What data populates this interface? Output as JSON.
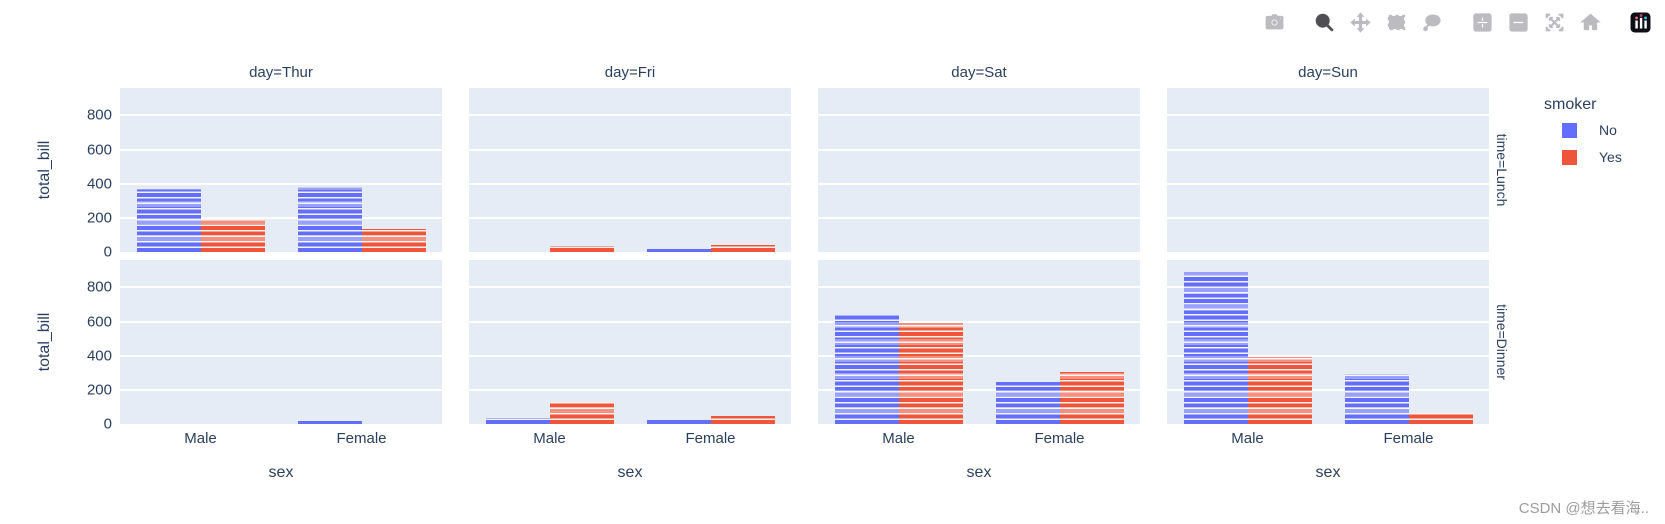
{
  "modebar": {
    "icons": [
      "camera",
      "zoom",
      "pan",
      "box-select",
      "lasso-select",
      "zoom-in",
      "zoom-out",
      "autoscale",
      "reset-axes-home",
      "plotly-logo"
    ],
    "active_icon": "zoom",
    "logo_colors": {
      "bg": "#0d0f14",
      "bars": "#ffffff",
      "dot_left": "#ea5f94",
      "dot_mid": "#c13b5c",
      "dot_right": "#2bc7e0"
    }
  },
  "legend": {
    "title": "smoker",
    "items": [
      {
        "label": "No",
        "color": "#636EFA"
      },
      {
        "label": "Yes",
        "color": "#EF553B"
      }
    ]
  },
  "watermark": "CSDN @想去看海..",
  "chart_data": {
    "type": "bar",
    "barmode": "group",
    "note": "stacked individual records per bar (plotly express tips dataset, faceted)",
    "title": "",
    "xlabel": "sex",
    "ylabel": "total_bill",
    "facet_col_field": "day",
    "facet_row_field": "time",
    "col_titles": [
      "day=Thur",
      "day=Fri",
      "day=Sat",
      "day=Sun"
    ],
    "row_titles": [
      "time=Lunch",
      "time=Dinner"
    ],
    "rows": [
      "Lunch",
      "Dinner"
    ],
    "cols": [
      "Thur",
      "Fri",
      "Sat",
      "Sun"
    ],
    "categories": [
      "Male",
      "Female"
    ],
    "series": [
      {
        "name": "No",
        "color": "#636EFA"
      },
      {
        "name": "Yes",
        "color": "#EF553B"
      }
    ],
    "yticks": [
      0,
      200,
      400,
      600,
      800
    ],
    "ylim": [
      0,
      960
    ],
    "grid": true,
    "plot_bgcolor": "#e5ecf6",
    "font_color": "#2a3f5f",
    "legend_position": "right",
    "values": {
      "Lunch": {
        "Thur": {
          "Male": {
            "No": 366.3,
            "Yes": 191.7
          },
          "Female": {
            "No": 381.6,
            "Yes": 134.5
          }
        },
        "Fri": {
          "Male": {
            "No": 0,
            "Yes": 34.2
          },
          "Female": {
            "No": 16.0,
            "Yes": 39.8
          }
        },
        "Sat": {
          "Male": {
            "No": 0,
            "Yes": 0
          },
          "Female": {
            "No": 0,
            "Yes": 0
          }
        },
        "Sun": {
          "Male": {
            "No": 0,
            "Yes": 0
          },
          "Female": {
            "No": 0,
            "Yes": 0
          }
        }
      },
      "Dinner": {
        "Thur": {
          "Male": {
            "No": 0,
            "Yes": 0
          },
          "Female": {
            "No": 18.8,
            "Yes": 0
          }
        },
        "Fri": {
          "Male": {
            "No": 34.9,
            "Yes": 129.5
          },
          "Female": {
            "No": 22.8,
            "Yes": 48.3
          }
        },
        "Sat": {
          "Male": {
            "No": 637.7,
            "Yes": 589.6
          },
          "Female": {
            "No": 247.1,
            "Yes": 304.0
          }
        },
        "Sun": {
          "Male": {
            "No": 891.7,
            "Yes": 392.1
          },
          "Female": {
            "No": 291.5,
            "Yes": 66.2
          }
        }
      }
    }
  }
}
